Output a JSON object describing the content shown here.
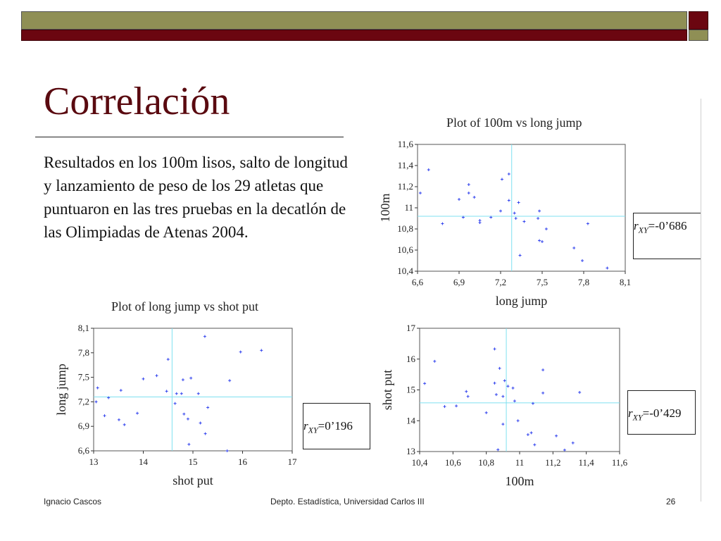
{
  "slide": {
    "title": "Correlación",
    "body": "Resultados en los 100m lisos, salto de longitud y lanzamiento de peso de los 29 atletas que puntuaron en las tres pruebas en la decatlón de las Olimpiadas de Atenas 2004.",
    "footer": {
      "author": "Ignacio Cascos",
      "department": "Depto. Estadística, Universidad Carlos III",
      "page": "26"
    }
  },
  "colors": {
    "olive": "#8f8f55",
    "maroon": "#6b0610",
    "points": "#3344ee",
    "median_lines": "#7fe0f0"
  },
  "correlations": [
    {
      "symbol": "r",
      "subscript": "XY",
      "value": "=-0’686"
    },
    {
      "symbol": "r",
      "subscript": "XY",
      "value": "=0’196"
    },
    {
      "symbol": "r",
      "subscript": "XY",
      "value": "=-0’429"
    }
  ],
  "chart_data": [
    {
      "type": "scatter",
      "title": "Plot of 100m vs long jump",
      "xlabel": "long jump",
      "ylabel": "100m",
      "xlim": [
        6.6,
        8.1
      ],
      "ylim": [
        10.4,
        11.6
      ],
      "xticks": [
        6.6,
        6.9,
        7.2,
        7.5,
        7.8,
        8.1
      ],
      "xtick_labels": [
        "6,6",
        "6,9",
        "7,2",
        "7,5",
        "7,8",
        "8,1"
      ],
      "yticks": [
        10.4,
        10.6,
        10.8,
        11.0,
        11.2,
        11.4,
        11.6
      ],
      "ytick_labels": [
        "10,4",
        "10,6",
        "10,8",
        "11",
        "11,2",
        "11,4",
        "11,6"
      ],
      "median": [
        7.28,
        10.92
      ],
      "points": [
        [
          6.62,
          11.14
        ],
        [
          6.68,
          11.36
        ],
        [
          6.78,
          10.85
        ],
        [
          6.9,
          11.08
        ],
        [
          6.93,
          10.91
        ],
        [
          6.97,
          11.22
        ],
        [
          6.97,
          11.14
        ],
        [
          7.01,
          11.1
        ],
        [
          7.05,
          10.88
        ],
        [
          7.05,
          10.86
        ],
        [
          7.13,
          10.91
        ],
        [
          7.2,
          10.97
        ],
        [
          7.21,
          11.27
        ],
        [
          7.26,
          11.32
        ],
        [
          7.26,
          11.07
        ],
        [
          7.3,
          10.95
        ],
        [
          7.31,
          10.9
        ],
        [
          7.33,
          11.05
        ],
        [
          7.34,
          10.55
        ],
        [
          7.37,
          10.87
        ],
        [
          7.47,
          10.9
        ],
        [
          7.48,
          10.97
        ],
        [
          7.48,
          10.69
        ],
        [
          7.5,
          10.68
        ],
        [
          7.53,
          10.8
        ],
        [
          7.73,
          10.62
        ],
        [
          7.79,
          10.5
        ],
        [
          7.83,
          10.85
        ],
        [
          7.97,
          10.43
        ]
      ]
    },
    {
      "type": "scatter",
      "title": "Plot of long jump vs shot put",
      "xlabel": "shot put",
      "ylabel": "long jump",
      "xlim": [
        13,
        17
      ],
      "ylim": [
        6.6,
        8.1
      ],
      "xticks": [
        13,
        14,
        15,
        16,
        17
      ],
      "xtick_labels": [
        "13",
        "14",
        "15",
        "16",
        "17"
      ],
      "yticks": [
        6.6,
        6.9,
        7.2,
        7.5,
        7.8,
        8.1
      ],
      "ytick_labels": [
        "6,6",
        "6,9",
        "7,2",
        "7,5",
        "7,8",
        "8,1"
      ],
      "median": [
        14.58,
        7.26
      ],
      "points": [
        [
          13.05,
          7.2
        ],
        [
          13.08,
          7.37
        ],
        [
          13.22,
          7.03
        ],
        [
          13.3,
          7.25
        ],
        [
          13.51,
          6.98
        ],
        [
          13.55,
          7.34
        ],
        [
          13.62,
          6.92
        ],
        [
          13.88,
          7.06
        ],
        [
          14.0,
          7.48
        ],
        [
          14.27,
          7.52
        ],
        [
          14.47,
          7.33
        ],
        [
          14.5,
          7.72
        ],
        [
          14.64,
          7.18
        ],
        [
          14.77,
          7.3
        ],
        [
          14.8,
          7.47
        ],
        [
          14.82,
          7.05
        ],
        [
          14.9,
          6.99
        ],
        [
          14.92,
          6.68
        ],
        [
          14.96,
          7.49
        ],
        [
          15.11,
          7.3
        ],
        [
          15.15,
          6.94
        ],
        [
          15.24,
          8.0
        ],
        [
          15.25,
          6.81
        ],
        [
          15.3,
          7.13
        ],
        [
          15.69,
          6.6
        ],
        [
          15.74,
          7.46
        ],
        [
          15.96,
          7.81
        ],
        [
          16.38,
          7.83
        ],
        [
          14.67,
          7.3
        ]
      ]
    },
    {
      "type": "scatter",
      "title": "",
      "xlabel": "100m",
      "ylabel": "shot put",
      "xlim": [
        10.4,
        11.6
      ],
      "ylim": [
        13,
        17
      ],
      "xticks": [
        10.4,
        10.6,
        10.8,
        11.0,
        11.2,
        11.4,
        11.6
      ],
      "xtick_labels": [
        "10,4",
        "10,6",
        "10,8",
        "11",
        "11,2",
        "11,4",
        "11,6"
      ],
      "yticks": [
        13,
        14,
        15,
        16,
        17
      ],
      "ytick_labels": [
        "13",
        "14",
        "15",
        "16",
        "17"
      ],
      "median": [
        10.92,
        14.58
      ],
      "points": [
        [
          10.43,
          15.21
        ],
        [
          10.49,
          15.93
        ],
        [
          10.55,
          14.46
        ],
        [
          10.62,
          14.48
        ],
        [
          10.68,
          14.95
        ],
        [
          10.69,
          14.79
        ],
        [
          10.8,
          14.26
        ],
        [
          10.85,
          16.33
        ],
        [
          10.85,
          15.22
        ],
        [
          10.86,
          14.85
        ],
        [
          10.87,
          13.06
        ],
        [
          10.88,
          15.7
        ],
        [
          10.9,
          13.89
        ],
        [
          10.9,
          14.79
        ],
        [
          10.91,
          15.3
        ],
        [
          10.93,
          15.12
        ],
        [
          10.96,
          15.06
        ],
        [
          10.97,
          14.64
        ],
        [
          10.99,
          14.0
        ],
        [
          11.05,
          13.55
        ],
        [
          11.07,
          13.61
        ],
        [
          11.08,
          14.56
        ],
        [
          11.09,
          13.22
        ],
        [
          11.14,
          15.65
        ],
        [
          11.14,
          14.9
        ],
        [
          11.22,
          13.51
        ],
        [
          11.27,
          13.05
        ],
        [
          11.32,
          13.28
        ],
        [
          11.36,
          14.92
        ]
      ]
    }
  ]
}
